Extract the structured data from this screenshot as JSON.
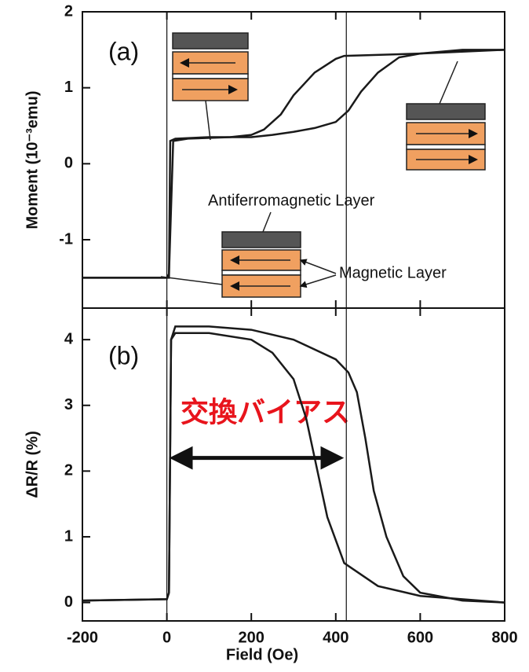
{
  "chart_data": [
    {
      "type": "line",
      "panel_label": "(a)",
      "ylabel": "Moment (10⁻³emu)",
      "xlim": [
        -200,
        800
      ],
      "xticks": [
        -200,
        0,
        200,
        400,
        600,
        800
      ],
      "ylim": [
        -1.9,
        2.0
      ],
      "yticks": [
        -1,
        0,
        1,
        2
      ],
      "annotations": [
        "Antiferromagnetic Layer",
        "Magnetic Layer"
      ],
      "vlines": [
        0,
        425
      ],
      "series": [
        {
          "color": "#1a1a1a",
          "x": [
            -200,
            0,
            5,
            8,
            20,
            100,
            200,
            250,
            300,
            350,
            400,
            430,
            460,
            500,
            550,
            600,
            700,
            800
          ],
          "values": [
            -1.5,
            -1.5,
            -1.5,
            0.3,
            0.33,
            0.35,
            0.35,
            0.38,
            0.42,
            0.47,
            0.55,
            0.7,
            0.95,
            1.2,
            1.4,
            1.45,
            1.5,
            1.5
          ]
        },
        {
          "color": "#1a1a1a",
          "x": [
            -200,
            0,
            5,
            15,
            50,
            150,
            200,
            230,
            270,
            300,
            350,
            400,
            420,
            600,
            800
          ],
          "values": [
            -1.5,
            -1.5,
            -1.45,
            0.3,
            0.33,
            0.35,
            0.38,
            0.45,
            0.65,
            0.9,
            1.2,
            1.38,
            1.42,
            1.45,
            1.5
          ]
        }
      ]
    },
    {
      "type": "line",
      "panel_label": "(b)",
      "ylabel": "ΔR/R (%)",
      "xlabel": "Field (Oe)",
      "xlim": [
        -200,
        800
      ],
      "xticks": [
        -200,
        0,
        200,
        400,
        600,
        800
      ],
      "ylim": [
        -0.28,
        4.48
      ],
      "yticks": [
        0,
        1,
        2,
        3,
        4
      ],
      "annotations": [
        "交換バイアス"
      ],
      "vlines": [
        0,
        425
      ],
      "arrow": {
        "x": [
          0,
          425
        ],
        "y": 2.2
      },
      "series": [
        {
          "color": "#1a1a1a",
          "x": [
            -200,
            0,
            5,
            10,
            20,
            100,
            200,
            300,
            400,
            430,
            450,
            470,
            490,
            520,
            560,
            600,
            700,
            800
          ],
          "values": [
            0.03,
            0.05,
            0.15,
            4.0,
            4.2,
            4.2,
            4.15,
            4.0,
            3.7,
            3.5,
            3.2,
            2.5,
            1.7,
            1.0,
            0.4,
            0.15,
            0.03,
            0
          ]
        },
        {
          "color": "#1a1a1a",
          "x": [
            -200,
            0,
            5,
            10,
            20,
            100,
            200,
            250,
            300,
            330,
            350,
            380,
            420,
            500,
            600,
            800
          ],
          "values": [
            0.03,
            0.05,
            0.15,
            4.0,
            4.1,
            4.1,
            4.0,
            3.8,
            3.4,
            2.8,
            2.2,
            1.3,
            0.6,
            0.25,
            0.1,
            0
          ]
        }
      ]
    }
  ]
}
